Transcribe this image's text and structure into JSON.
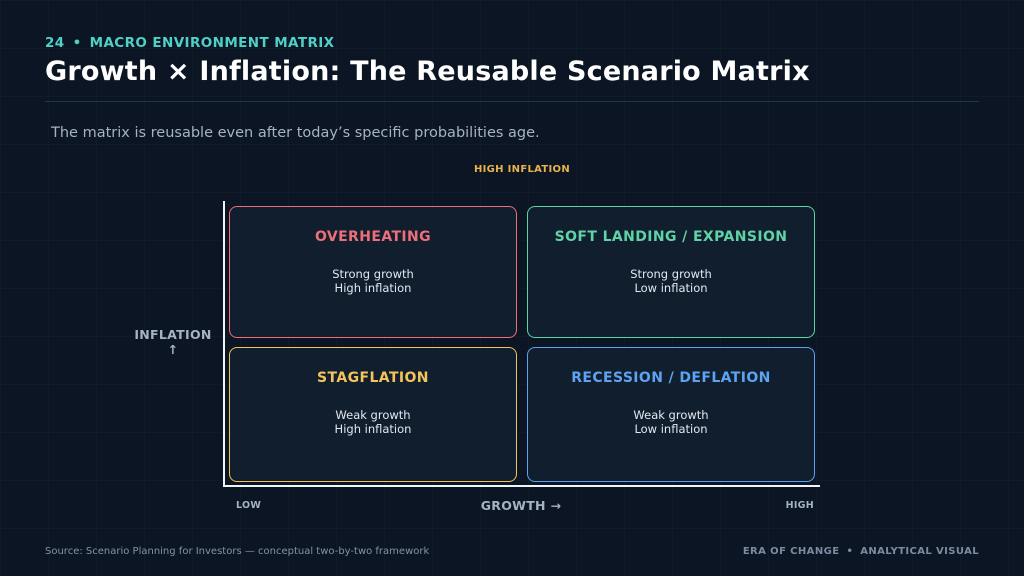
{
  "header": {
    "slide_number": "24",
    "separator": "•",
    "section": "MACRO ENVIRONMENT MATRIX",
    "title": "Growth × Inflation: The Reusable Scenario Matrix",
    "subtitle": "The matrix is reusable even after today’s specific probabilities age."
  },
  "axes": {
    "top_label": "HIGH INFLATION",
    "y_label": "INFLATION",
    "y_arrow": "↑",
    "x_label": "GROWTH →",
    "x_low": "LOW",
    "x_high": "HIGH"
  },
  "quadrants": [
    {
      "title": "OVERHEATING",
      "line1": "Strong growth",
      "line2": "High inflation",
      "color": "#ec6f7a"
    },
    {
      "title": "SOFT LANDING / EXPANSION",
      "line1": "Strong growth",
      "line2": "Low inflation",
      "color": "#5fd3a6"
    },
    {
      "title": "STAGFLATION",
      "line1": "Weak growth",
      "line2": "High inflation",
      "color": "#f2c45a"
    },
    {
      "title": "RECESSION / DEFLATION",
      "line1": "Weak growth",
      "line2": "Low inflation",
      "color": "#5ea3f2"
    }
  ],
  "footer": {
    "source": "Source: Scenario Planning for Investors — conceptual two-by-two framework",
    "brand": "ERA OF CHANGE",
    "separator": "•",
    "tag": "ANALYTICAL VISUAL"
  },
  "colors": {
    "background": "#0b1523",
    "accent_teal": "#4fd1c5",
    "accent_amber": "#e8b34b"
  }
}
